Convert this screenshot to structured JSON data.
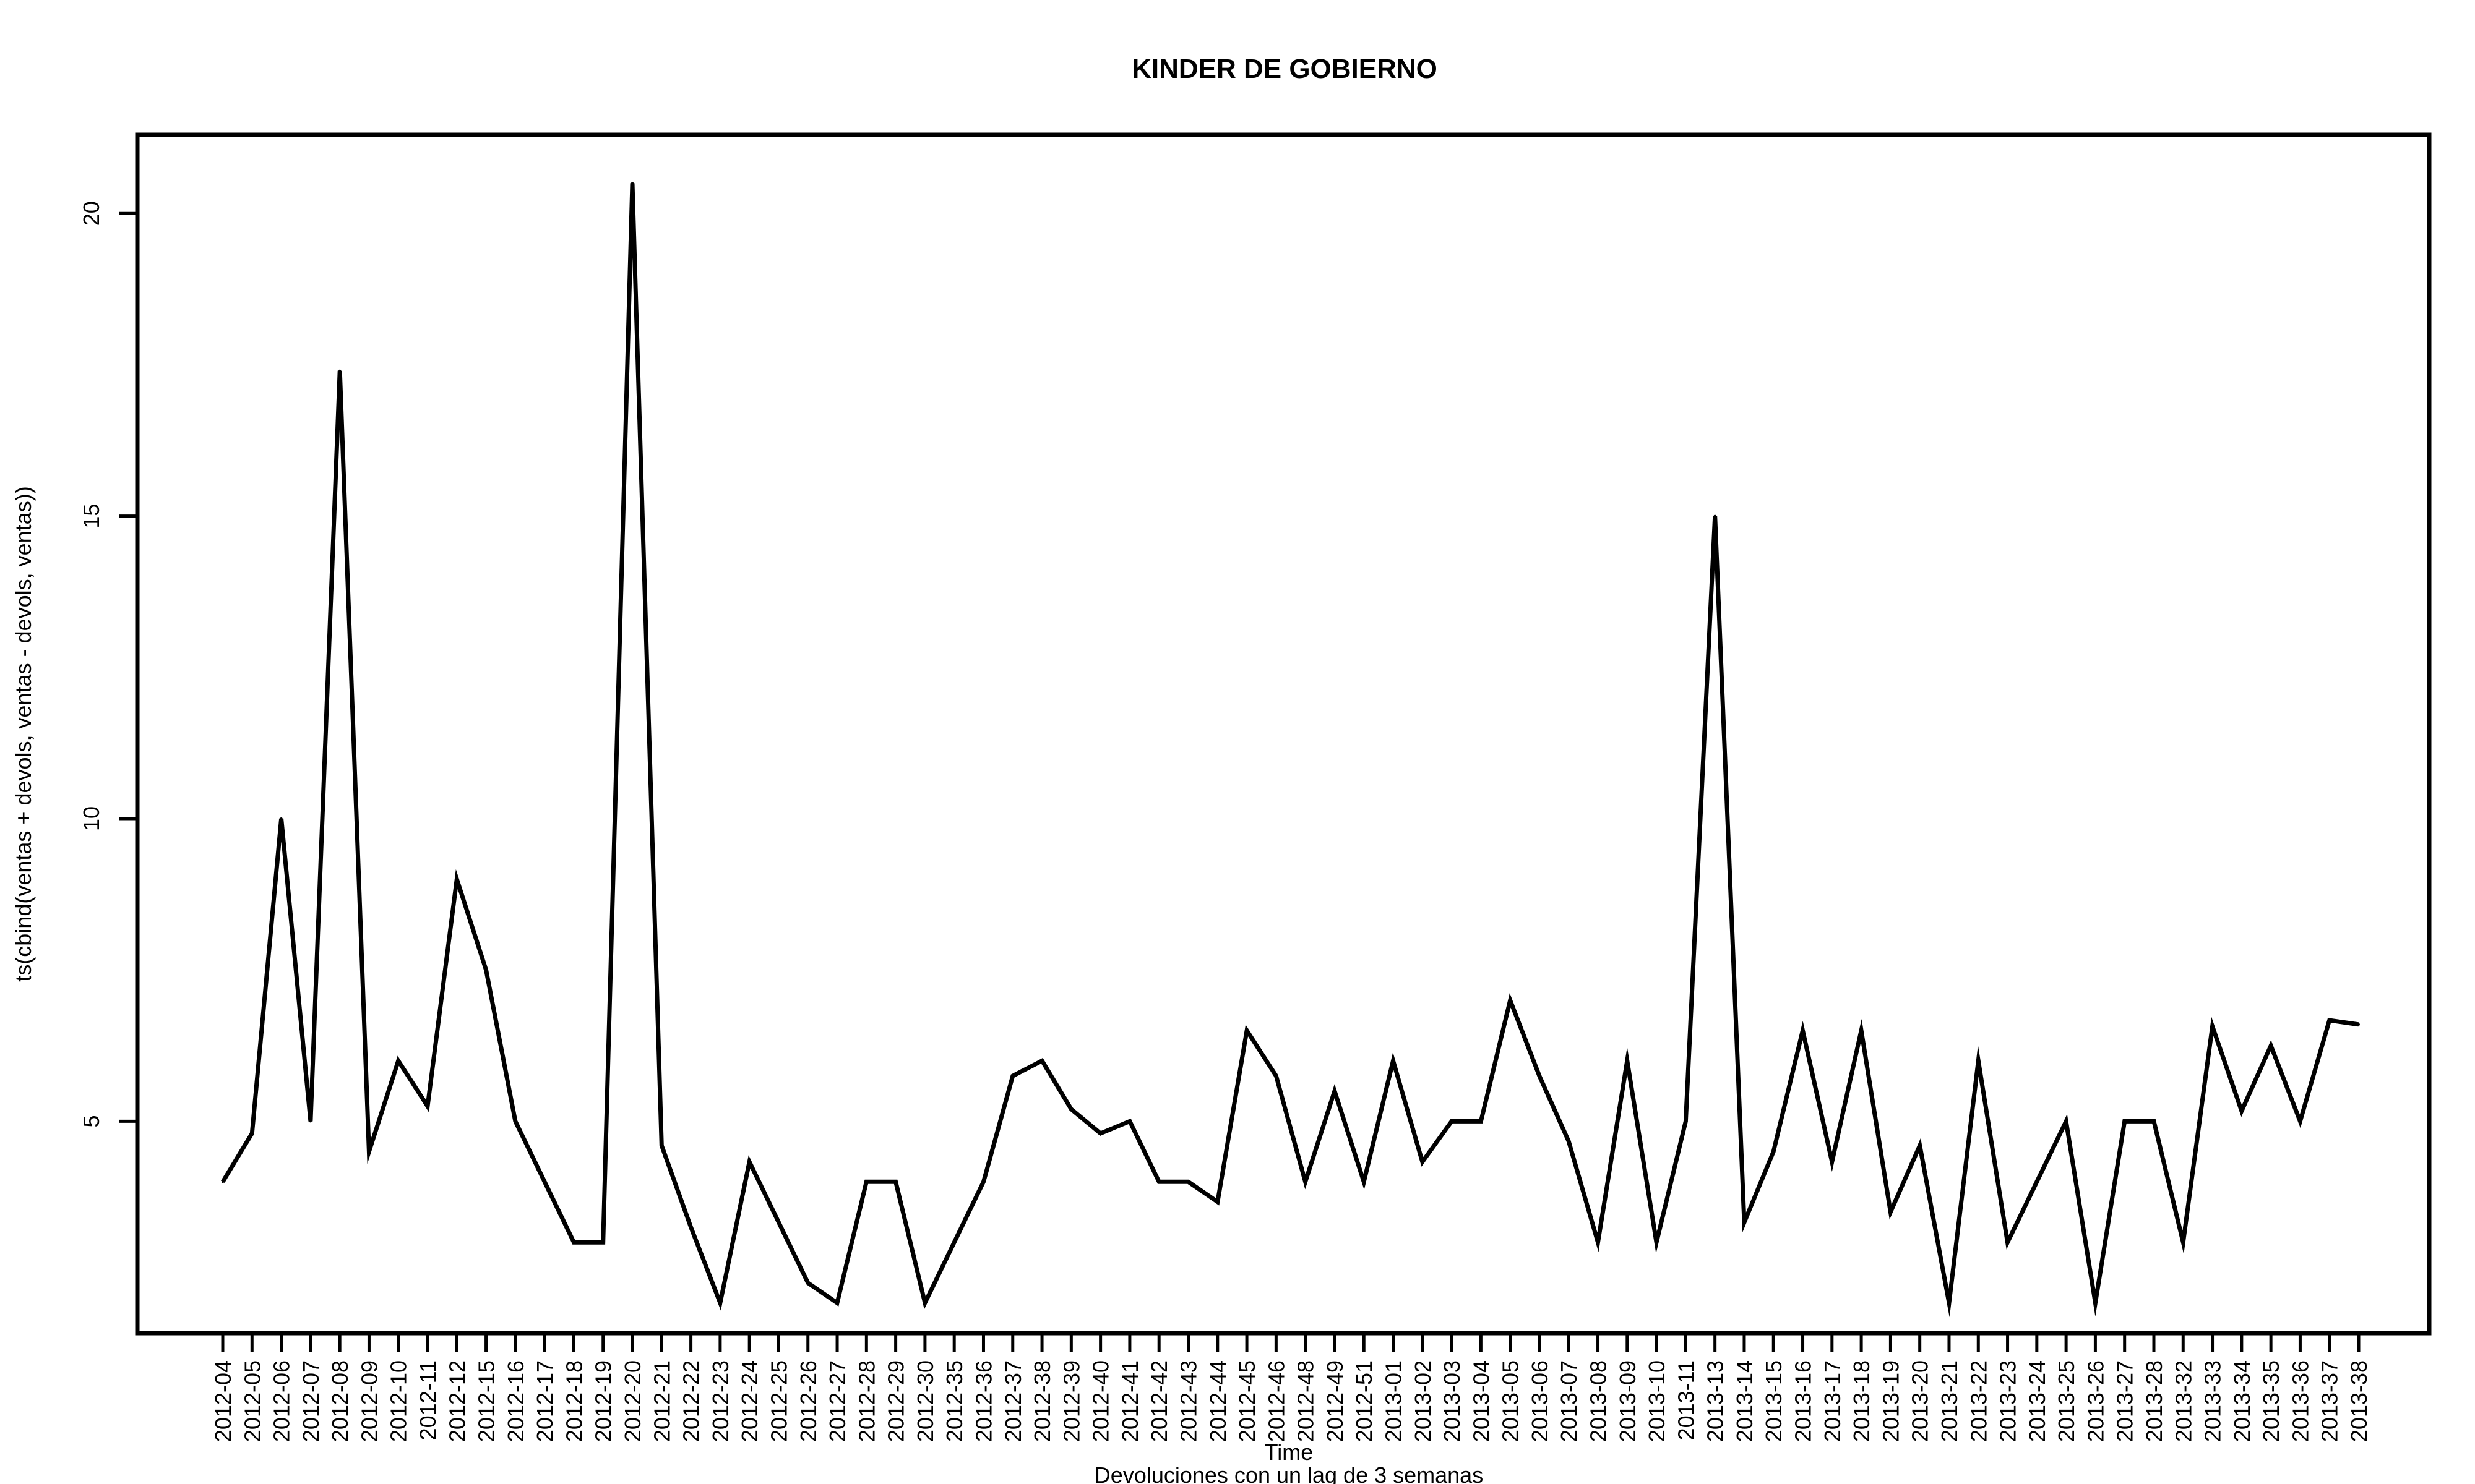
{
  "chart_data": {
    "type": "line",
    "title": "KINDER DE GOBIERNO",
    "xlabel": "Time",
    "ylabel": "ts(cbind(ventas + devols, ventas - devols, ventas))",
    "subtitle": "Devoluciones con un lag de 3 semanas",
    "ylim": [
      1.5,
      21.3
    ],
    "yticks": [
      5,
      10,
      15,
      20
    ],
    "grid": false,
    "categories": [
      "2012-04",
      "2012-05",
      "2012-06",
      "2012-07",
      "2012-08",
      "2012-09",
      "2012-10",
      "2012-11",
      "2012-12",
      "2012-15",
      "2012-16",
      "2012-17",
      "2012-18",
      "2012-19",
      "2012-20",
      "2012-21",
      "2012-22",
      "2012-23",
      "2012-24",
      "2012-25",
      "2012-26",
      "2012-27",
      "2012-28",
      "2012-29",
      "2012-30",
      "2012-35",
      "2012-36",
      "2012-37",
      "2012-38",
      "2012-39",
      "2012-40",
      "2012-41",
      "2012-42",
      "2012-43",
      "2012-44",
      "2012-45",
      "2012-46",
      "2012-48",
      "2012-49",
      "2012-51",
      "2013-01",
      "2013-02",
      "2013-03",
      "2013-04",
      "2013-05",
      "2013-06",
      "2013-07",
      "2013-08",
      "2013-09",
      "2013-10",
      "2013-11",
      "2013-13",
      "2013-14",
      "2013-15",
      "2013-16",
      "2013-17",
      "2013-18",
      "2013-19",
      "2013-20",
      "2013-21",
      "2013-22",
      "2013-23",
      "2013-24",
      "2013-25",
      "2013-26",
      "2013-27",
      "2013-28",
      "2013-32",
      "2013-33",
      "2013-34",
      "2013-35",
      "2013-36",
      "2013-37",
      "2013-38"
    ],
    "series": [
      {
        "color": "#000000",
        "values": [
          4,
          4.8,
          10,
          5,
          17.4,
          4.5,
          6,
          5.25,
          9,
          7.5,
          5,
          4,
          3,
          3,
          20.5,
          4.6,
          3.25,
          2,
          4.33,
          3.33,
          2.33,
          2,
          4,
          4,
          2,
          3,
          4,
          5.75,
          6,
          5.2,
          4.8,
          5,
          4,
          4,
          3.67,
          6.5,
          5.75,
          4,
          5.5,
          4,
          6,
          4.33,
          5,
          5,
          7,
          5.75,
          4.67,
          3,
          6,
          3,
          5,
          15,
          3.33,
          4.5,
          6.5,
          4.33,
          6.5,
          3.5,
          4.6,
          2,
          6,
          3,
          4,
          5,
          2,
          5,
          5,
          3,
          6.57,
          5.17,
          6.25,
          5,
          6.67,
          6.6
        ]
      }
    ]
  }
}
